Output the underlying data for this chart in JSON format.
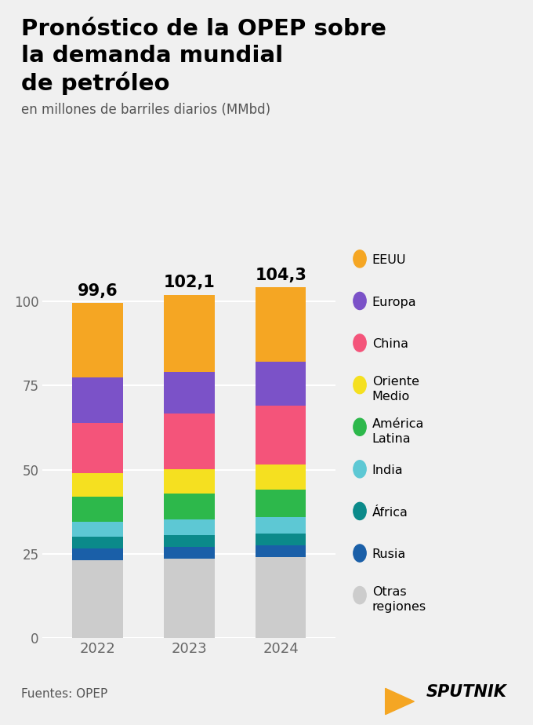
{
  "title_line1": "Pronóstico de la OPEP sobre",
  "title_line2": "la demanda mundial",
  "title_line3": "de petróleo",
  "subtitle": "en millones de barriles diarios (MMbd)",
  "years": [
    "2022",
    "2023",
    "2024"
  ],
  "totals": [
    "99,6",
    "102,1",
    "104,3"
  ],
  "legend_labels": [
    "EEUU",
    "Europa",
    "China",
    "Oriente\nMedio",
    "América\nLatina",
    "India",
    "África",
    "Rusia",
    "Otras\nregiones"
  ],
  "colors_ordered": [
    "#f5a623",
    "#7b52c8",
    "#f4547a",
    "#f5e020",
    "#2db84b",
    "#5dc8d4",
    "#0b8a8a",
    "#1a5fa8",
    "#cccccc"
  ],
  "stack_colors": [
    "#cccccc",
    "#1a5fa8",
    "#0b8a8a",
    "#5dc8d4",
    "#2db84b",
    "#f5e020",
    "#f4547a",
    "#7b52c8",
    "#f5a623"
  ],
  "data": [
    [
      23.0,
      3.5,
      3.5,
      4.5,
      7.5,
      7.0,
      15.0,
      13.5,
      22.1
    ],
    [
      23.5,
      3.5,
      3.5,
      4.7,
      7.7,
      7.2,
      16.5,
      12.5,
      22.9
    ],
    [
      24.0,
      3.5,
      3.5,
      5.0,
      8.0,
      7.5,
      17.5,
      13.0,
      22.3
    ]
  ],
  "background_color": "#f0f0f0",
  "ylim": [
    0,
    112
  ],
  "yticks": [
    0,
    25,
    50,
    75,
    100
  ],
  "source": "Fuentes: OPEP",
  "bar_width": 0.55
}
